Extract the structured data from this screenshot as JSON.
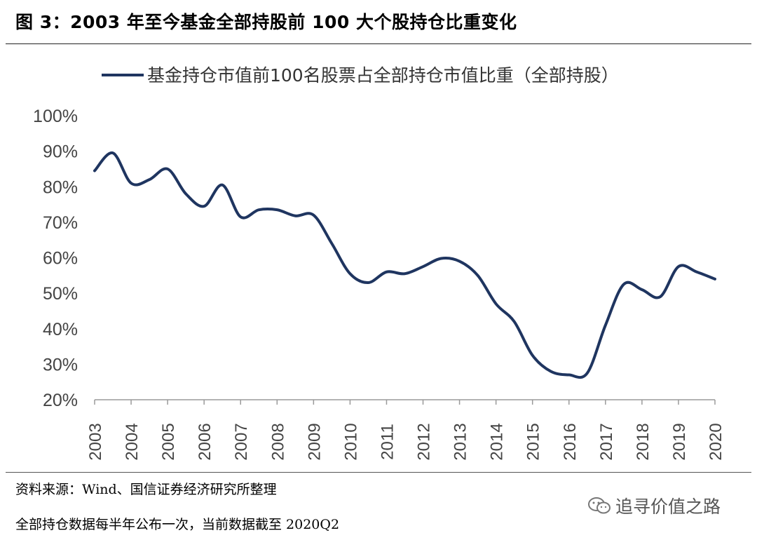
{
  "figure": {
    "title": "图 3：2003 年至今基金全部持股前 100 大个股持仓比重变化",
    "source": "资料来源：Wind、国信证券经济研究所整理",
    "note": "全部持仓数据每半年公布一次，当前数据截至 2020Q2",
    "watermark": "追寻价值之路"
  },
  "chart_data": {
    "type": "line",
    "title": "",
    "xlabel": "",
    "ylabel": "",
    "legend_position": "top-center",
    "grid": false,
    "line_color": "#1f3560",
    "x_ticks": [
      "2003",
      "2004",
      "2005",
      "2006",
      "2007",
      "2008",
      "2009",
      "2010",
      "2011",
      "2012",
      "2013",
      "2014",
      "2015",
      "2016",
      "2017",
      "2018",
      "2019",
      "2020"
    ],
    "y_ticks": [
      "100%",
      "90%",
      "80%",
      "70%",
      "60%",
      "50%",
      "40%",
      "30%",
      "20%"
    ],
    "ylim": [
      20,
      100
    ],
    "xlim": [
      2003,
      2020
    ],
    "series": [
      {
        "name": "基金持仓市值前100名股票占全部持仓市值比重（全部持股）",
        "x": [
          2003.0,
          2003.5,
          2004.0,
          2004.5,
          2005.0,
          2005.5,
          2006.0,
          2006.5,
          2007.0,
          2007.5,
          2008.0,
          2008.5,
          2009.0,
          2009.5,
          2010.0,
          2010.5,
          2011.0,
          2011.5,
          2012.0,
          2012.5,
          2013.0,
          2013.5,
          2014.0,
          2014.5,
          2015.0,
          2015.5,
          2016.0,
          2016.5,
          2017.0,
          2017.5,
          2018.0,
          2018.5,
          2019.0,
          2019.5,
          2020.0
        ],
        "values": [
          84.5,
          89.5,
          81.0,
          82.0,
          85.0,
          78.0,
          74.5,
          80.5,
          71.5,
          73.5,
          73.5,
          71.8,
          72.0,
          64.0,
          55.5,
          53.0,
          56.0,
          55.5,
          57.5,
          59.8,
          59.0,
          55.0,
          47.0,
          42.0,
          32.5,
          28.0,
          27.0,
          27.5,
          41.0,
          52.5,
          51.0,
          49.0,
          57.5,
          56.0,
          54.0
        ]
      }
    ]
  }
}
